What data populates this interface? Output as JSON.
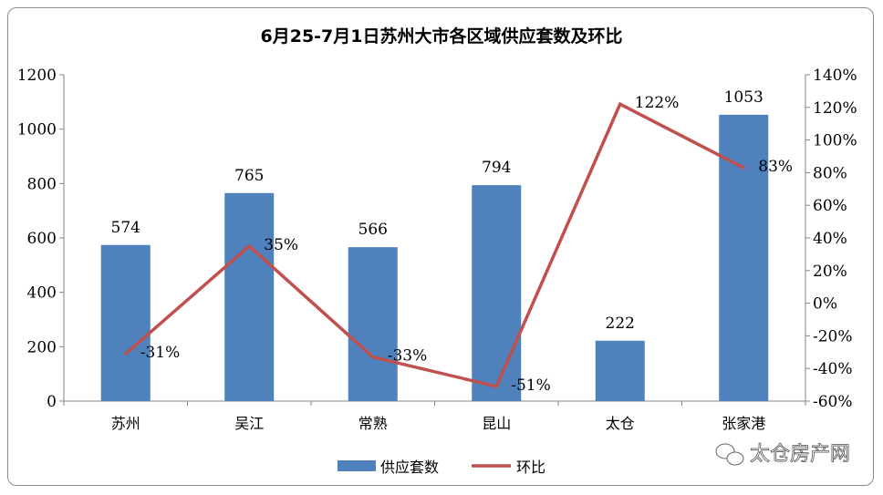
{
  "chart_data": {
    "type": "bar+line",
    "title": "6月25-7月1日苏州大市各区域供应套数及环比",
    "categories": [
      "苏州",
      "吴江",
      "常熟",
      "昆山",
      "太仓",
      "张家港"
    ],
    "series": [
      {
        "name": "供应套数",
        "type": "bar",
        "axis": "left",
        "color": "#4f81bd",
        "values": [
          574,
          765,
          566,
          794,
          222,
          1053
        ],
        "labels": [
          "574",
          "765",
          "566",
          "794",
          "222",
          "1053"
        ]
      },
      {
        "name": "环比",
        "type": "line",
        "axis": "right",
        "color": "#c0504d",
        "values": [
          -31,
          35,
          -33,
          -51,
          122,
          83
        ],
        "labels": [
          "-31%",
          "35%",
          "-33%",
          "-51%",
          "122%",
          "83%"
        ]
      }
    ],
    "y_left": {
      "range": [
        0,
        1200
      ],
      "ticks": [
        "0",
        "200",
        "400",
        "600",
        "800",
        "1000",
        "1200"
      ]
    },
    "y_right": {
      "range": [
        -60,
        140
      ],
      "ticks": [
        "-60%",
        "-40%",
        "-20%",
        "0%",
        "20%",
        "40%",
        "60%",
        "80%",
        "100%",
        "120%",
        "140%"
      ]
    },
    "grid": false,
    "legend": "bottom"
  },
  "watermark": "太仓房产网"
}
